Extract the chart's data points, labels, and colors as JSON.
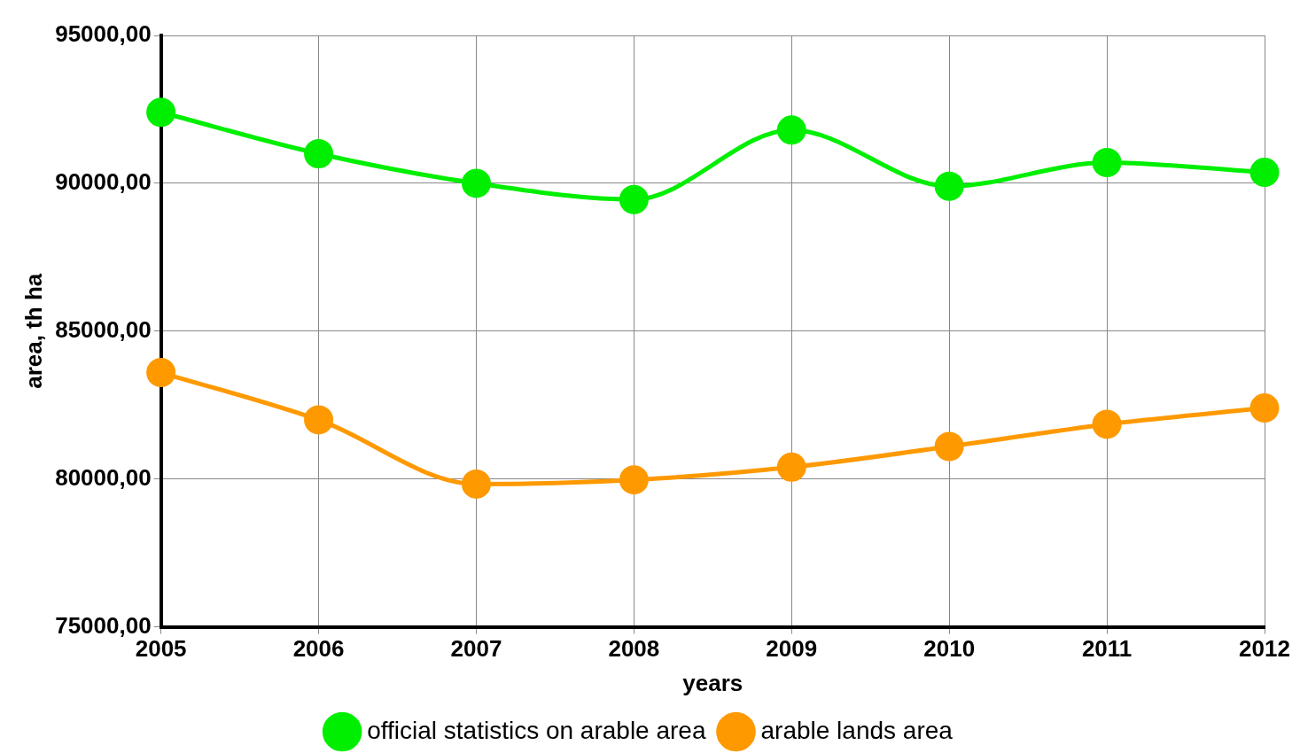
{
  "chart_data": {
    "type": "line",
    "xlabel": "years",
    "ylabel": "area, th ha",
    "categories": [
      "2005",
      "2006",
      "2007",
      "2008",
      "2009",
      "2010",
      "2011",
      "2012"
    ],
    "series": [
      {
        "name": "official statistics on arable area",
        "color": "#00ee00",
        "values": [
          92400,
          91000,
          90000,
          89450,
          91800,
          89900,
          90700,
          90370
        ]
      },
      {
        "name": "arable lands area",
        "color": "#ff9900",
        "values": [
          83600,
          82000,
          79830,
          79970,
          80400,
          81100,
          81850,
          82400
        ]
      }
    ],
    "ylim": [
      75000,
      95000
    ],
    "yticks": [
      {
        "value": 75000,
        "label": "75000,00"
      },
      {
        "value": 80000,
        "label": "80000,00"
      },
      {
        "value": 85000,
        "label": "85000,00"
      },
      {
        "value": 90000,
        "label": "90000,00"
      },
      {
        "value": 95000,
        "label": "95000,00"
      }
    ],
    "grid": true,
    "legend": "bottom",
    "marker": "circle",
    "line_style": "solid"
  }
}
